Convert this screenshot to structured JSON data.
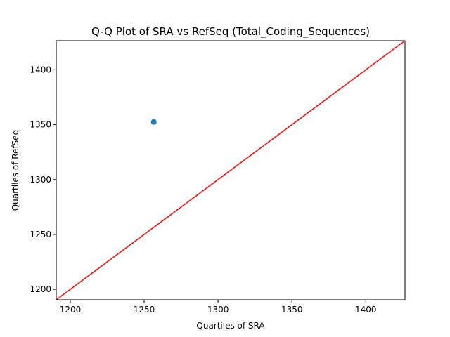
{
  "chart_data": {
    "type": "scatter",
    "title": "Q-Q Plot of SRA vs RefSeq (Total_Coding_Sequences)",
    "xlabel": "Quartiles of SRA",
    "ylabel": "Quartiles of RefSeq",
    "xlim": [
      1190.5,
      1426.5
    ],
    "ylim": [
      1190.5,
      1426.5
    ],
    "xticks": [
      1200,
      1250,
      1300,
      1350,
      1400
    ],
    "yticks": [
      1200,
      1250,
      1300,
      1350,
      1400
    ],
    "grid": false,
    "points": [
      {
        "x": 1256.5,
        "y": 1352.5
      }
    ],
    "reference_line": {
      "from": [
        1190.5,
        1190.5
      ],
      "to": [
        1426.5,
        1426.5
      ]
    },
    "colors": {
      "points": "#1f77b4",
      "reference_line": "#ff0000",
      "axes": "#000000"
    }
  }
}
